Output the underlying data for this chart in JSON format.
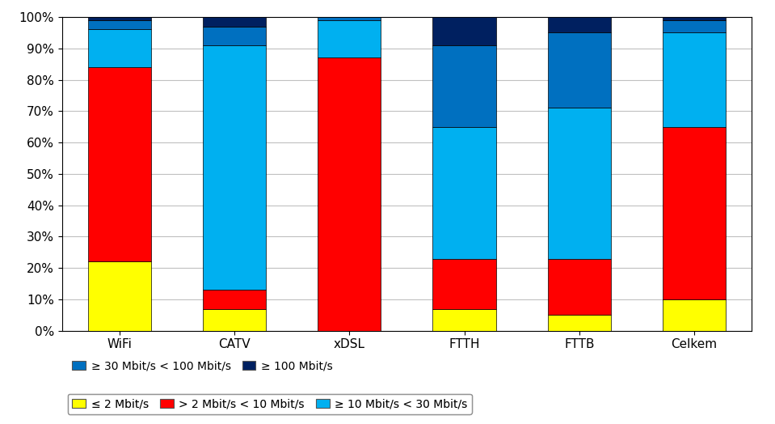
{
  "categories": [
    "WiFi",
    "CATV",
    "xDSL",
    "FTTH",
    "FTTB",
    "Celkem"
  ],
  "series": [
    {
      "label": "≤ 2 Mbit/s",
      "color": "#FFFF00",
      "values": [
        22,
        7,
        0,
        7,
        5,
        10
      ]
    },
    {
      "label": "> 2 Mbit/s < 10 Mbit/s",
      "color": "#FF0000",
      "values": [
        62,
        6,
        87,
        16,
        18,
        55
      ]
    },
    {
      "label": "≥ 10 Mbit/s < 30 Mbit/s",
      "color": "#00B0F0",
      "values": [
        12,
        78,
        12,
        42,
        48,
        30
      ]
    },
    {
      "label": "≥ 30 Mbit/s < 100 Mbit/s",
      "color": "#0070C0",
      "values": [
        3,
        6,
        1,
        26,
        24,
        4
      ]
    },
    {
      "label": "≥ 100 Mbit/s",
      "color": "#002060",
      "values": [
        1,
        3,
        0,
        9,
        5,
        1
      ]
    }
  ],
  "ylim": [
    0,
    100
  ],
  "yticks": [
    0,
    10,
    20,
    30,
    40,
    50,
    60,
    70,
    80,
    90,
    100
  ],
  "ytick_labels": [
    "0%",
    "10%",
    "20%",
    "30%",
    "40%",
    "50%",
    "60%",
    "70%",
    "80%",
    "90%",
    "100%"
  ],
  "background_color": "#FFFFFF",
  "bar_width": 0.55,
  "grid_color": "#C0C0C0",
  "border_color": "#000000",
  "legend_items_row1": [
    0,
    1,
    2
  ],
  "legend_items_row2": [
    3,
    4
  ],
  "legend_fontsize": 10,
  "tick_fontsize": 11,
  "xlabel_fontsize": 12
}
